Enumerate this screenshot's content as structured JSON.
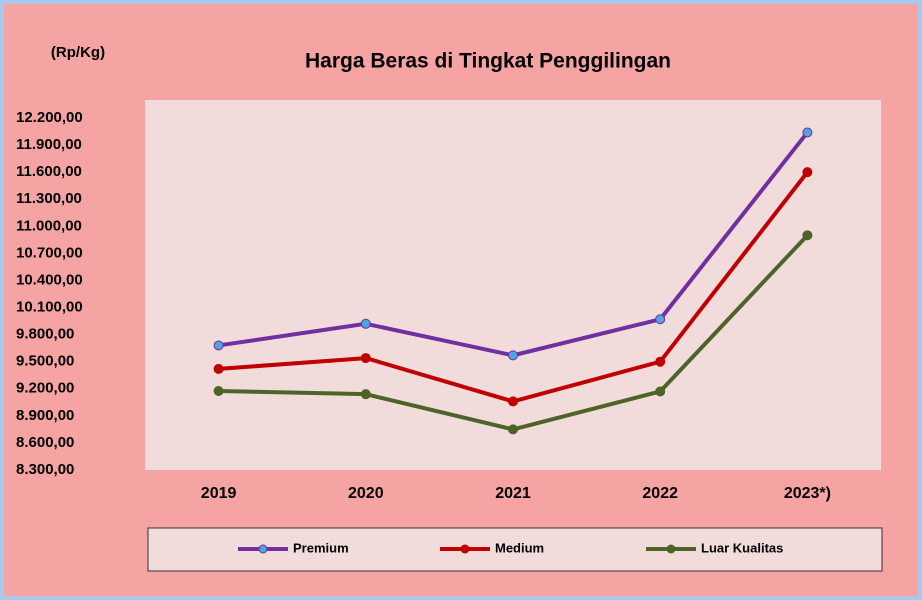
{
  "chart_data": {
    "type": "line",
    "title": "Harga Beras di Tingkat Penggilingan",
    "y_label": "(Rp/Kg)",
    "categories": [
      "2019",
      "2020",
      "2021",
      "2022",
      "2023*)"
    ],
    "series": [
      {
        "name": "Premium",
        "color": "#7030a0",
        "marker_color": "#4fa3e0",
        "values": [
          9680,
          9920,
          9570,
          9970,
          12040
        ]
      },
      {
        "name": "Medium",
        "color": "#c00000",
        "marker_color": "#c00000",
        "values": [
          9420,
          9540,
          9060,
          9500,
          11600
        ]
      },
      {
        "name": "Luar Kualitas",
        "color": "#4f6228",
        "marker_color": "#4f6228",
        "values": [
          9175,
          9140,
          8750,
          9170,
          10900
        ]
      }
    ],
    "ylim": [
      8300,
      12200
    ],
    "yticks": [
      {
        "value": 8300,
        "label": "8.300,00"
      },
      {
        "value": 8600,
        "label": "8.600,00"
      },
      {
        "value": 8900,
        "label": "8.900,00"
      },
      {
        "value": 9200,
        "label": "9.200,00"
      },
      {
        "value": 9500,
        "label": "9.500,00"
      },
      {
        "value": 9800,
        "label": "9.800,00"
      },
      {
        "value": 10100,
        "label": "10.100,00"
      },
      {
        "value": 10400,
        "label": "10.400,00"
      },
      {
        "value": 10700,
        "label": "10.700,00"
      },
      {
        "value": 11000,
        "label": "11.000,00"
      },
      {
        "value": 11300,
        "label": "11.300,00"
      },
      {
        "value": 11600,
        "label": "11.600,00"
      },
      {
        "value": 11900,
        "label": "11.900,00"
      },
      {
        "value": 12200,
        "label": "12.200,00"
      }
    ],
    "legend": "bottom"
  }
}
